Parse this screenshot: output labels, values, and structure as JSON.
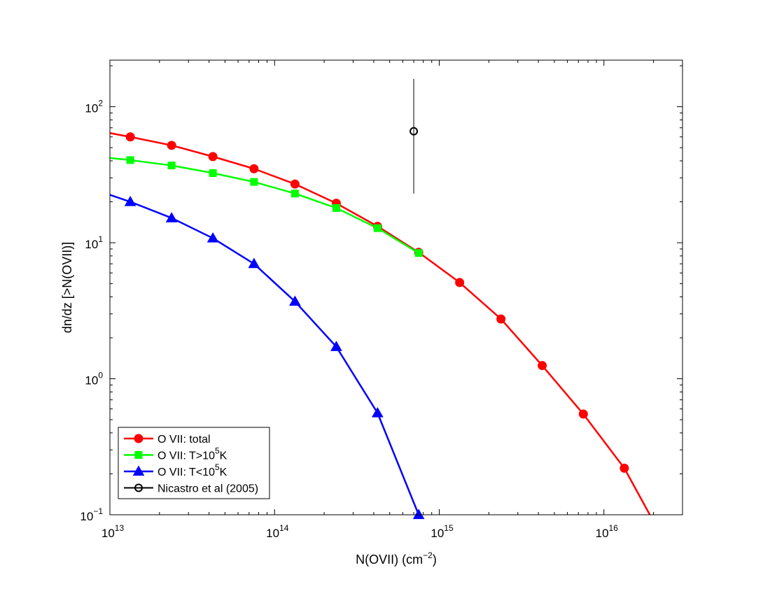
{
  "chart_data": {
    "type": "line",
    "xlabel": "N(OVII) (cm⁻²)",
    "ylabel": "dn/dz [>N(OVII)]",
    "x_scale": "log",
    "y_scale": "log",
    "xlim": [
      10000000000000.0,
      3e+16
    ],
    "ylim": [
      0.1,
      220
    ],
    "x_ticks": [
      {
        "value": 10000000000000.0,
        "base": "10",
        "exp": "13"
      },
      {
        "value": 100000000000000.0,
        "base": "10",
        "exp": "14"
      },
      {
        "value": 1000000000000000.0,
        "base": "10",
        "exp": "15"
      },
      {
        "value": 1e+16,
        "base": "10",
        "exp": "16"
      }
    ],
    "y_ticks": [
      {
        "value": 0.1,
        "base": "10",
        "exp": "−1"
      },
      {
        "value": 1,
        "base": "10",
        "exp": "0"
      },
      {
        "value": 10,
        "base": "10",
        "exp": "1"
      },
      {
        "value": 100,
        "base": "10",
        "exp": "2"
      }
    ],
    "grid": false,
    "legend_position": "bottom-left",
    "series": [
      {
        "name": "O VII: total",
        "legend_parts": [
          "O VII: total"
        ],
        "color": "#ff0000",
        "marker": "circle",
        "line_start": [
          10000000000000.0,
          64
        ],
        "line_end": [
          1.9e+16,
          0.1
        ],
        "x": [
          13300000000000.0,
          23700000000000.0,
          42200000000000.0,
          75000000000000.0,
          133000000000000.0,
          237000000000000.0,
          422000000000000.0,
          750000000000000.0,
          1330000000000000.0,
          2370000000000000.0,
          4220000000000000.0,
          7500000000000000.0,
          1.33e+16
        ],
        "y": [
          60,
          52,
          43,
          35,
          27,
          19.5,
          13.2,
          8.5,
          5.1,
          2.75,
          1.25,
          0.55,
          0.22
        ]
      },
      {
        "name": "O VII: T>10^5K",
        "legend_parts": [
          "O VII: T>10",
          "5",
          "K"
        ],
        "color": "#00ff00",
        "marker": "square",
        "line_start": [
          10000000000000.0,
          42
        ],
        "line_end": null,
        "x": [
          13300000000000.0,
          23700000000000.0,
          42200000000000.0,
          75000000000000.0,
          133000000000000.0,
          237000000000000.0,
          422000000000000.0,
          750000000000000.0
        ],
        "y": [
          40.5,
          37,
          32.5,
          28,
          23,
          18,
          12.8,
          8.4
        ]
      },
      {
        "name": "O VII: T<10^5K",
        "legend_parts": [
          "O VII: T<10",
          "5",
          "K"
        ],
        "color": "#0000ff",
        "marker": "triangle",
        "line_start": [
          10000000000000.0,
          22.5
        ],
        "line_end": null,
        "x": [
          13300000000000.0,
          23700000000000.0,
          42200000000000.0,
          75000000000000.0,
          133000000000000.0,
          237000000000000.0,
          422000000000000.0,
          750000000000000.0
        ],
        "y": [
          20,
          15.2,
          10.8,
          7.0,
          3.7,
          1.72,
          0.56,
          0.1
        ]
      },
      {
        "name": "Nicastro et al (2005)",
        "legend_parts": [
          "Nicastro et al (2005)"
        ],
        "color": "#000000",
        "marker": "open-circle",
        "x": [
          700000000000000.0
        ],
        "y": [
          66
        ],
        "y_err_low": [
          23
        ],
        "y_err_high": [
          160
        ]
      }
    ]
  }
}
